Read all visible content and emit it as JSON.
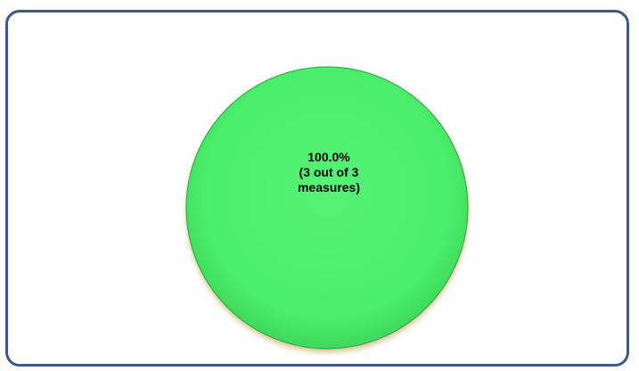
{
  "page": {
    "title": "",
    "frame_border_color": "#3a5a8c"
  },
  "chart_data": {
    "type": "pie",
    "title": "",
    "slices": [
      {
        "label_lines": [
          "100.0%",
          "(3 out of 3",
          "measures)"
        ],
        "value": 3,
        "total": 3,
        "percent": 100.0,
        "color": "#4cee6a",
        "edge_color": "#2f9e44"
      }
    ],
    "legend": "none",
    "grid": false
  }
}
